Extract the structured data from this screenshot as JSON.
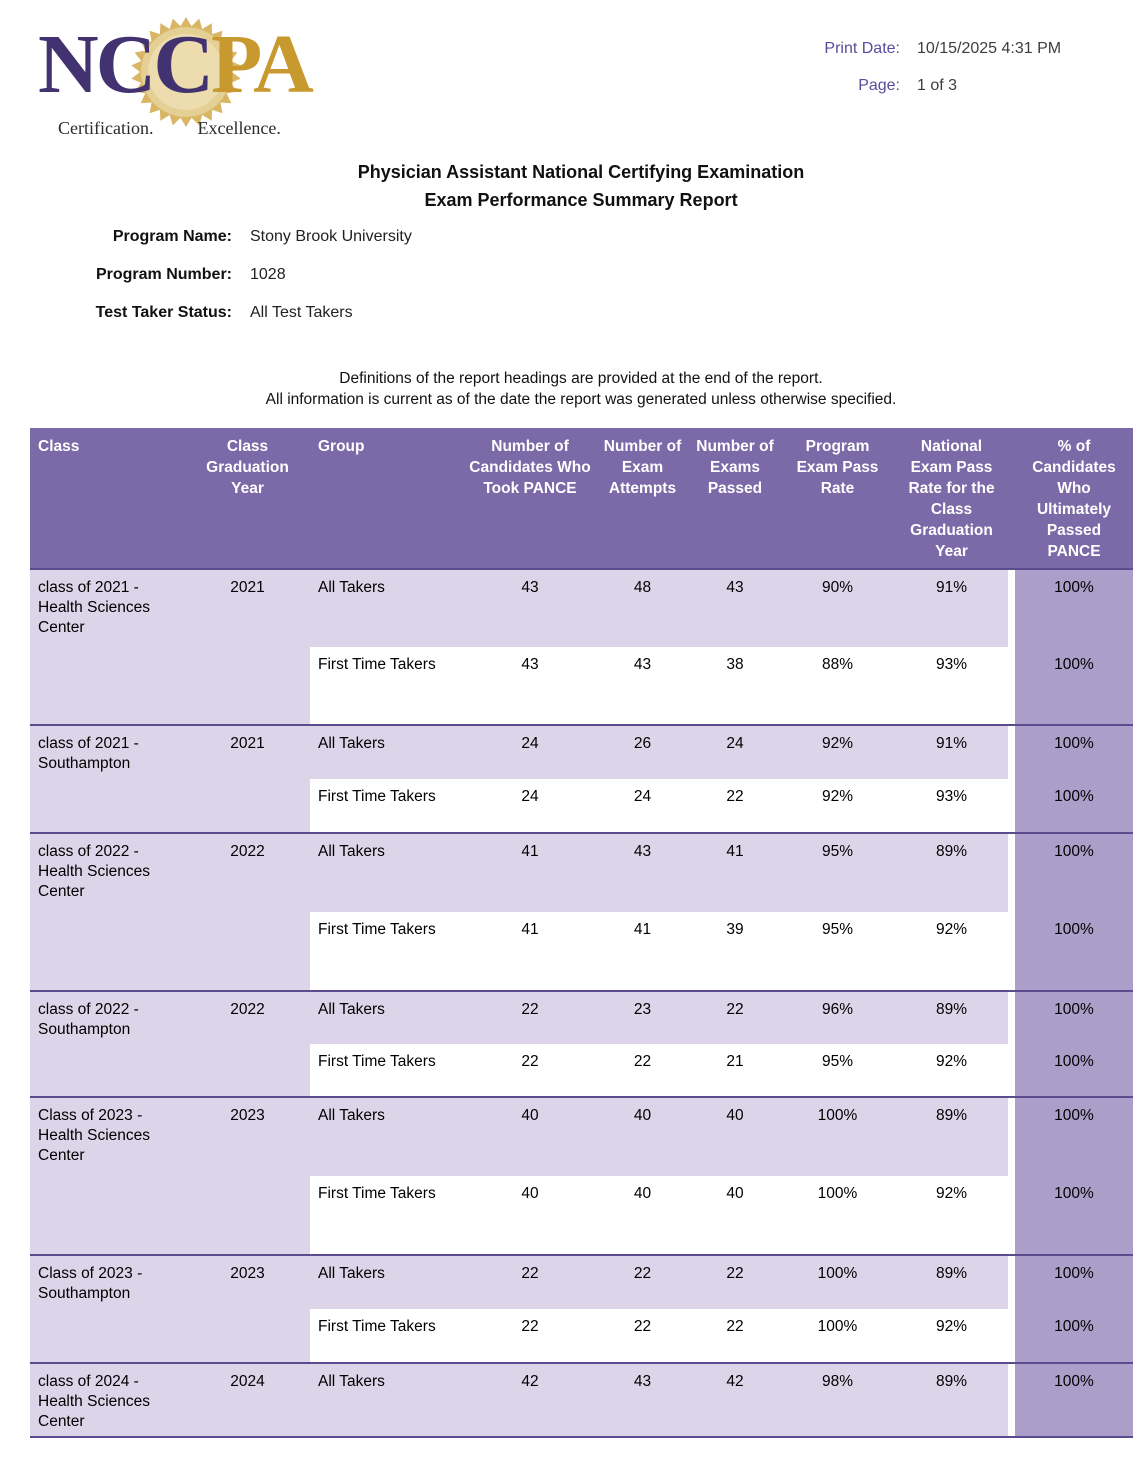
{
  "header": {
    "print_date_label": "Print Date:",
    "print_date_value": "10/15/2025 4:31 PM",
    "page_label": "Page:",
    "page_value": "1 of 3"
  },
  "logo": {
    "name": "NCCPA",
    "letters_primary": "NC",
    "letter_seal": "C",
    "letters_secondary": "PA",
    "tagline_left": "Certification.",
    "tagline_right": "Excellence."
  },
  "title": {
    "line1": "Physician Assistant National Certifying Examination",
    "line2": "Exam Performance Summary Report"
  },
  "program_info": [
    {
      "label": "Program Name:",
      "value": "Stony Brook University"
    },
    {
      "label": "Program Number:",
      "value": "1028"
    },
    {
      "label": "Test Taker Status:",
      "value": "All Test Takers"
    }
  ],
  "notes": [
    "Definitions of the report headings are provided at the end of the report.",
    "All information is current as of the date the report was generated unless otherwise specified."
  ],
  "table": {
    "headers": [
      "Class",
      "Class Graduation Year",
      "Group",
      "Number of Candidates Who Took PANCE",
      "Number of Exam Attempts",
      "Number of Exams Passed",
      "Program Exam Pass Rate",
      "National Exam Pass Rate for the Class Graduation Year",
      "% of Candidates Who Ultimately Passed PANCE"
    ],
    "blocks": [
      {
        "class_name": "class of 2021 - Health Sciences Center",
        "year": "2021",
        "rows": [
          {
            "group": "All Takers",
            "values": [
              "43",
              "48",
              "43",
              "90%",
              "91%",
              "100%"
            ]
          },
          {
            "group": "First Time Takers",
            "values": [
              "43",
              "43",
              "38",
              "88%",
              "93%",
              "100%"
            ]
          }
        ]
      },
      {
        "class_name": "class of 2021 - Southampton",
        "year": "2021",
        "rows": [
          {
            "group": "All Takers",
            "values": [
              "24",
              "26",
              "24",
              "92%",
              "91%",
              "100%"
            ]
          },
          {
            "group": "First Time Takers",
            "values": [
              "24",
              "24",
              "22",
              "92%",
              "93%",
              "100%"
            ]
          }
        ]
      },
      {
        "class_name": "class of 2022 - Health Sciences Center",
        "year": "2022",
        "rows": [
          {
            "group": "All Takers",
            "values": [
              "41",
              "43",
              "41",
              "95%",
              "89%",
              "100%"
            ]
          },
          {
            "group": "First Time Takers",
            "values": [
              "41",
              "41",
              "39",
              "95%",
              "92%",
              "100%"
            ]
          }
        ]
      },
      {
        "class_name": "class of 2022 - Southampton",
        "year": "2022",
        "rows": [
          {
            "group": "All Takers",
            "values": [
              "22",
              "23",
              "22",
              "96%",
              "89%",
              "100%"
            ]
          },
          {
            "group": "First Time Takers",
            "values": [
              "22",
              "22",
              "21",
              "95%",
              "92%",
              "100%"
            ]
          }
        ]
      },
      {
        "class_name": "Class of 2023 - Health Sciences Center",
        "year": "2023",
        "rows": [
          {
            "group": "All Takers",
            "values": [
              "40",
              "40",
              "40",
              "100%",
              "89%",
              "100%"
            ]
          },
          {
            "group": "First Time Takers",
            "values": [
              "40",
              "40",
              "40",
              "100%",
              "92%",
              "100%"
            ]
          }
        ]
      },
      {
        "class_name": "Class of 2023 - Southampton",
        "year": "2023",
        "rows": [
          {
            "group": "All Takers",
            "values": [
              "22",
              "22",
              "22",
              "100%",
              "89%",
              "100%"
            ]
          },
          {
            "group": "First Time Takers",
            "values": [
              "22",
              "22",
              "22",
              "100%",
              "92%",
              "100%"
            ]
          }
        ]
      },
      {
        "class_name": "class of 2024 - Health Sciences Center",
        "year": "2024",
        "rows": [
          {
            "group": "All Takers",
            "values": [
              "42",
              "43",
              "42",
              "98%",
              "89%",
              "100%"
            ]
          }
        ]
      }
    ]
  },
  "colors": {
    "header_purple": "#7b69a8",
    "row_light_purple": "#dcd4e8",
    "last_column_purple": "#ab9fca",
    "separator_purple": "#5d4b8f",
    "print_label_purple": "#5c4b9b",
    "logo_purple": "#42326f",
    "logo_gold": "#c8992e"
  }
}
